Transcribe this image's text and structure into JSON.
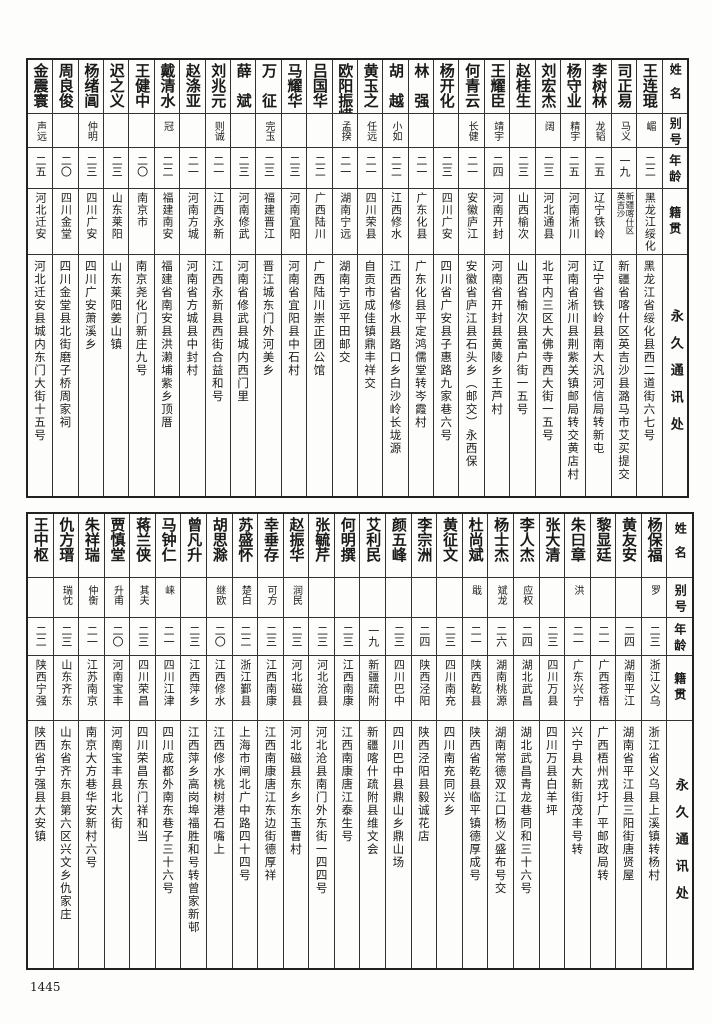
{
  "tables": [
    {
      "header": {
        "name": "姓名",
        "alias": "别号",
        "age": "年龄",
        "hometown": "籍贯",
        "address": "永久通讯处"
      },
      "rows": [
        {
          "name": "王连琨",
          "alias": "嵋",
          "age": "二二",
          "hometown": "黑龙江绥化",
          "address": "黑龙江省绥化县西二道街六七号"
        },
        {
          "name": "司正易",
          "alias": "马义",
          "age": "一九",
          "hometown": "新疆喀什区英吉沙",
          "address": "新疆省喀什区英吉沙县潞马市艾买提交"
        },
        {
          "name": "李树林",
          "alias": "龙韬",
          "age": "二五",
          "hometown": "辽宁铁岭",
          "address": "辽宁省铁岭县南大汎河信局转新屯"
        },
        {
          "name": "杨守业",
          "alias": "精宇",
          "age": "二五",
          "hometown": "河南淅川",
          "address": "河南省淅川县荆紫关镇邮局转交黄店村"
        },
        {
          "name": "刘宏杰",
          "alias": "阔",
          "age": "二三",
          "hometown": "河北通县",
          "address": "北平内三区大佛寺西大街一五号"
        },
        {
          "name": "赵桂生",
          "alias": "",
          "age": "二三",
          "hometown": "山西榆次",
          "address": "山西省榆次县富户街一五号"
        },
        {
          "name": "王耀臣",
          "alias": "靖宇",
          "age": "二四",
          "hometown": "河南开封",
          "address": "河南省开封县黄陵乡王芦村"
        },
        {
          "name": "何青云",
          "alias": "长健",
          "age": "二一",
          "hometown": "安徽庐江",
          "address": "安徽省庐江县石头乡（邮交）永西保"
        },
        {
          "name": "杨开化",
          "alias": "",
          "age": "二三",
          "hometown": "四川广安",
          "address": "四川省广安县子惠路九家巷六号"
        },
        {
          "name": "林　强",
          "alias": "",
          "age": "二一",
          "hometown": "广东化县",
          "address": "广东化县平定鸿儒堂转岑霞村"
        },
        {
          "name": "胡　越",
          "alias": "小如",
          "age": "二二",
          "hometown": "江西修水",
          "address": "江西省修水县路口乡白沙岭长垅源"
        },
        {
          "name": "黄玉之",
          "alias": "任远",
          "age": "二一",
          "hometown": "四川荣县",
          "address": "自贡市成佳镇鼎丰祥交"
        },
        {
          "name": "欧阳振嵘",
          "alias": "孟揆",
          "age": "二一",
          "hometown": "湖南宁远",
          "address": "湖南宁远平田邮交"
        },
        {
          "name": "吕国华",
          "alias": "",
          "age": "二二",
          "hometown": "广西陆川",
          "address": "广西陆川崇正团公馆"
        },
        {
          "name": "马耀华",
          "alias": "",
          "age": "二三",
          "hometown": "河南宜阳",
          "address": "河南省宜阳县中石村"
        },
        {
          "name": "万　征",
          "alias": "完玉",
          "age": "二三",
          "hometown": "福建晋江",
          "address": "晋江城东门外河美乡"
        },
        {
          "name": "薛　斌",
          "alias": "",
          "age": "二三",
          "hometown": "河南修武",
          "address": "河南省修武县城内西门里"
        },
        {
          "name": "刘兆元",
          "alias": "则诚",
          "age": "二一",
          "hometown": "江西永新",
          "address": "江西永新县西街合益和号"
        },
        {
          "name": "赵涤亚",
          "alias": "",
          "age": "二一",
          "hometown": "河南方城",
          "address": "河南省方城县中封村"
        },
        {
          "name": "戴清水",
          "alias": "冠",
          "age": "二二",
          "hometown": "福建南安",
          "address": "福建省南安县洪濑埔紫乡顶厝"
        },
        {
          "name": "王健中",
          "alias": "",
          "age": "二〇",
          "hometown": "南京市",
          "address": "南京尧化门新庄九号"
        },
        {
          "name": "迟之义",
          "alias": "",
          "age": "二三",
          "hometown": "山东莱阳",
          "address": "山东莱阳姜山镇"
        },
        {
          "name": "杨绪阊",
          "alias": "仲明",
          "age": "二三",
          "hometown": "四川广安",
          "address": "四川广安萧溪乡"
        },
        {
          "name": "周良俊",
          "alias": "",
          "age": "二〇",
          "hometown": "四川金堂",
          "address": "四川金堂县北街磨子桥周家祠"
        },
        {
          "name": "金震寰",
          "alias": "声远",
          "age": "二五",
          "hometown": "河北迁安",
          "address": "河北迁安县城内东门大街十五号"
        }
      ]
    },
    {
      "header": {
        "name": "姓名",
        "alias": "别号",
        "age": "年龄",
        "hometown": "籍贯",
        "address": "永久通讯处"
      },
      "rows": [
        {
          "name": "杨保福",
          "alias": "罗",
          "age": "二三",
          "hometown": "浙江义乌",
          "address": "浙江省义乌县上溪镇转杨村"
        },
        {
          "name": "黄友安",
          "alias": "",
          "age": "二四",
          "hometown": "湖南平江",
          "address": "湖南省平江县三阳街唐贤屋"
        },
        {
          "name": "黎显廷",
          "alias": "",
          "age": "二一",
          "hometown": "广西苍梧",
          "address": "广西梧州戎圩广平邮政局转"
        },
        {
          "name": "朱曰章",
          "alias": "洪",
          "age": "二一",
          "hometown": "广东兴宁",
          "address": "兴宁县大新街茂丰号转"
        },
        {
          "name": "张大清",
          "alias": "",
          "age": "二三",
          "hometown": "四川万县",
          "address": "四川万县白羊坪"
        },
        {
          "name": "李人杰",
          "alias": "应权",
          "age": "二四",
          "hometown": "湖北武昌",
          "address": "湖北武昌青龙巷同和三十六号"
        },
        {
          "name": "杨士杰",
          "alias": "斌龙",
          "age": "二六",
          "hometown": "湖南桃源",
          "address": "湖南常德双江口杨义盛布号交"
        },
        {
          "name": "杜尚斌",
          "alias": "戢",
          "age": "二一",
          "hometown": "陕西乾县",
          "address": "陕西省乾县临平镇德厚成号"
        },
        {
          "name": "黄征文",
          "alias": "",
          "age": "二三",
          "hometown": "四川南充",
          "address": "四川南充同兴乡"
        },
        {
          "name": "李宗洲",
          "alias": "",
          "age": "二四",
          "hometown": "陕西泾阳",
          "address": "陕西泾阳县毅诚花店"
        },
        {
          "name": "颜五峰",
          "alias": "",
          "age": "二三",
          "hometown": "四川巴中",
          "address": "四川巴中县鼎山乡鼎山场"
        },
        {
          "name": "艾利民",
          "alias": "",
          "age": "一九",
          "hometown": "新疆疏附",
          "address": "新疆喀什疏附县维文会"
        },
        {
          "name": "何明撰",
          "alias": "",
          "age": "二三",
          "hometown": "江西南康",
          "address": "江西南康唐江泰生号"
        },
        {
          "name": "张毓芹",
          "alias": "",
          "age": "二三",
          "hometown": "河北沧县",
          "address": "河北沧县南门外东街一四四号"
        },
        {
          "name": "赵振华",
          "alias": "润民",
          "age": "二三",
          "hometown": "河北磁县",
          "address": "河北磁县东乡东玉曹村"
        },
        {
          "name": "幸垂存",
          "alias": "可方",
          "age": "二三",
          "hometown": "江西南康",
          "address": "江西南康唐江东边街德厚祥"
        },
        {
          "name": "苏盛怀",
          "alias": "楚白",
          "age": "二二",
          "hometown": "浙江鄞县",
          "address": "上海市闸北广中路四十四号"
        },
        {
          "name": "胡思滁",
          "alias": "继欧",
          "age": "二〇",
          "hometown": "江西修水",
          "address": "江西修水桃树港石嘴上"
        },
        {
          "name": "曾凡升",
          "alias": "",
          "age": "二三",
          "hometown": "江西萍乡",
          "address": "江西萍乡高岗埠福胜和号转曾家新邨"
        },
        {
          "name": "马钟仁",
          "alias": "崃",
          "age": "二一",
          "hometown": "四川江津",
          "address": "四川成都外南东巷子三十六号"
        },
        {
          "name": "蒋兰侠",
          "alias": "其夫",
          "age": "二三",
          "hometown": "四川荣昌",
          "address": "四川荣昌东门祥和当"
        },
        {
          "name": "贾慎堂",
          "alias": "升甫",
          "age": "二〇",
          "hometown": "河南宝丰",
          "address": "河南宝丰县北大街"
        },
        {
          "name": "朱祥瑞",
          "alias": "仲衡",
          "age": "二一",
          "hometown": "江苏南京",
          "address": "南京大方巷华安新村六号"
        },
        {
          "name": "仇方瑨",
          "alias": "瑞忱",
          "age": "二三",
          "hometown": "山东齐东",
          "address": "山东省齐东县第六区兴文乡仇家庄"
        },
        {
          "name": "王中枢",
          "alias": "",
          "age": "二二",
          "hometown": "陕西宁强",
          "address": "陕西省宁强县大安镇"
        }
      ]
    }
  ],
  "page_number": "1445"
}
